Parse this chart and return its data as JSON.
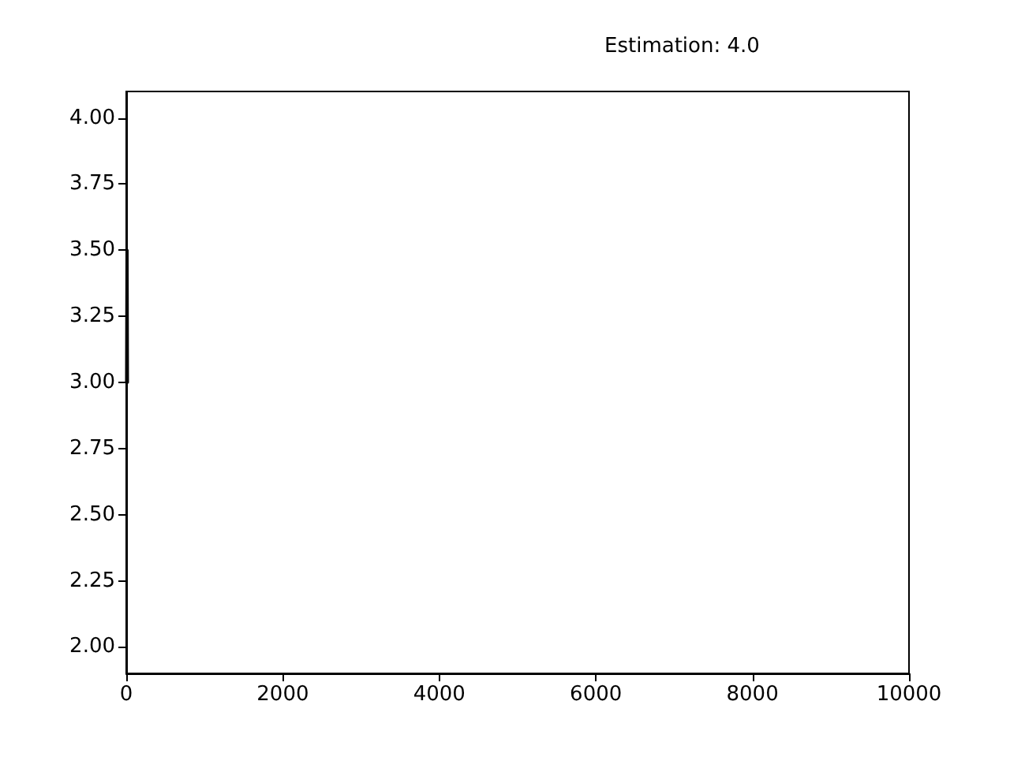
{
  "chart_data": {
    "type": "line",
    "title": "Estimation: 4.0",
    "x": [
      0,
      5,
      10,
      15,
      20
    ],
    "series": [
      {
        "color": "#000000",
        "values": [
          3.0,
          3.5,
          3.0,
          3.5,
          3.0
        ]
      }
    ],
    "xlim": [
      0,
      10000
    ],
    "xticks": [
      0,
      2000,
      4000,
      6000,
      8000,
      10000
    ],
    "ylim": [
      1.9,
      4.1
    ],
    "yticks": [
      {
        "value": 2,
        "label": "2.00"
      },
      {
        "value": 2.25,
        "label": "2.25"
      },
      {
        "value": 2.5,
        "label": "2.50"
      },
      {
        "value": 2.75,
        "label": "2.75"
      },
      {
        "value": 3,
        "label": "3.00"
      },
      {
        "value": 3.25,
        "label": "3.25"
      },
      {
        "value": 3.5,
        "label": "3.50"
      },
      {
        "value": 3.75,
        "label": "3.75"
      },
      {
        "value": 4,
        "label": "4.00"
      }
    ]
  }
}
